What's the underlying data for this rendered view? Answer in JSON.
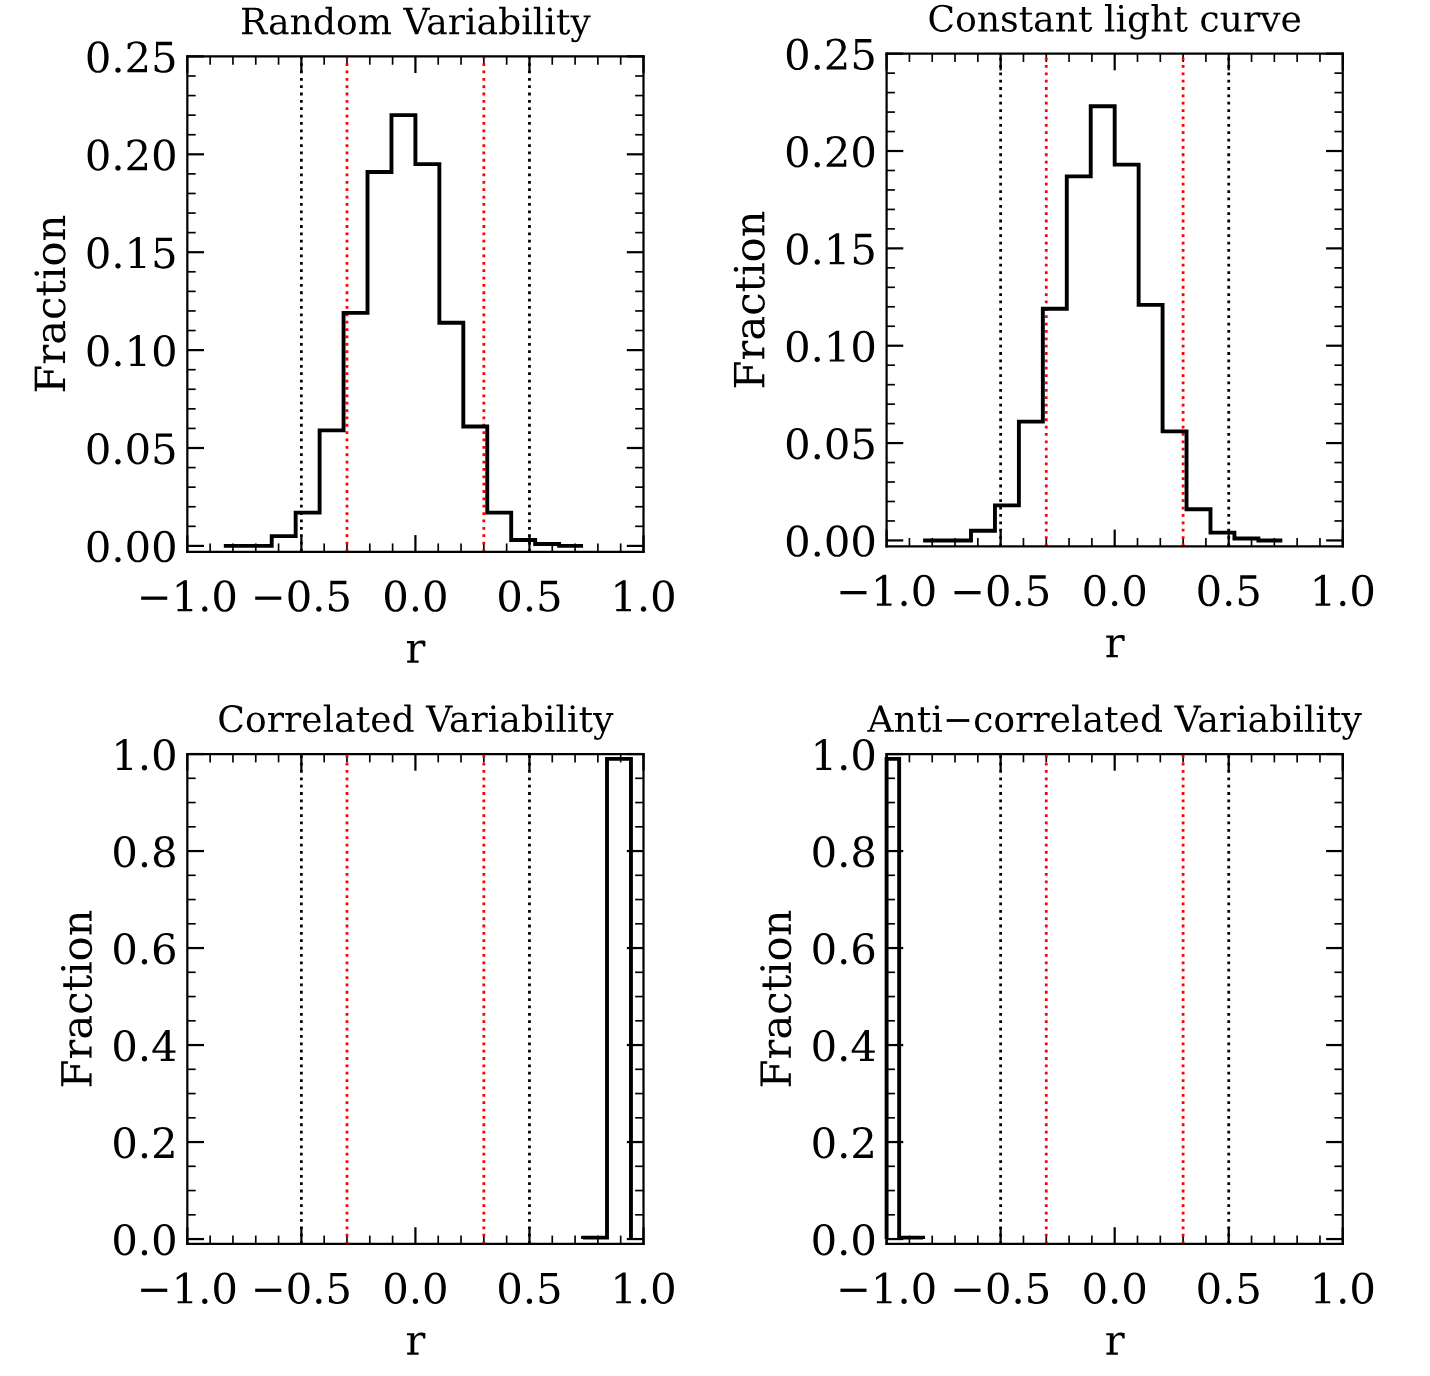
{
  "chart_data": [
    {
      "type": "histogram",
      "title": "Random Variability",
      "xlabel": "r",
      "ylabel": "Fraction",
      "bins": [
        -0.84,
        -0.735,
        -0.63,
        -0.525,
        -0.42,
        -0.315,
        -0.21,
        -0.105,
        0,
        0.105,
        0.21,
        0.315,
        0.42,
        0.525,
        0.63,
        0.735
      ],
      "values": [
        0,
        0,
        0.005,
        0.017,
        0.059,
        0.119,
        0.191,
        0.22,
        0.195,
        0.114,
        0.061,
        0.017,
        0.003,
        0.001,
        0
      ],
      "color": "#000000",
      "xlim": [
        -1.0,
        1.0
      ],
      "xticks": [
        {
          "value": -1.0,
          "label": "−1.0"
        },
        {
          "value": -0.5,
          "label": "−0.5"
        },
        {
          "value": 0.0,
          "label": "0.0"
        },
        {
          "value": 0.5,
          "label": "0.5"
        },
        {
          "value": 1.0,
          "label": "1.0"
        }
      ],
      "ylim": [
        -0.003,
        0.25
      ],
      "yticks": [
        {
          "value": 0,
          "label": "0.00"
        },
        {
          "value": 0.05,
          "label": "0.05"
        },
        {
          "value": 0.1,
          "label": "0.10"
        },
        {
          "value": 0.15,
          "label": "0.15"
        },
        {
          "value": 0.2,
          "label": "0.20"
        },
        {
          "value": 0.25,
          "label": "0.25"
        }
      ],
      "ref_lines": [
        {
          "axis": "x",
          "value": -0.5,
          "color": "#000000",
          "line_style": "dotted"
        },
        {
          "axis": "x",
          "value": 0.5,
          "color": "#000000",
          "line_style": "dotted"
        },
        {
          "axis": "x",
          "value": -0.3,
          "color": "#ff0000",
          "line_style": "dotted"
        },
        {
          "axis": "x",
          "value": 0.3,
          "color": "#ff0000",
          "line_style": "dotted"
        }
      ],
      "grid": false
    },
    {
      "type": "histogram",
      "title": "Constant light curve",
      "xlabel": "r",
      "ylabel": "Fraction",
      "bins": [
        -0.84,
        -0.735,
        -0.63,
        -0.525,
        -0.42,
        -0.315,
        -0.21,
        -0.105,
        0,
        0.105,
        0.21,
        0.315,
        0.42,
        0.525,
        0.63,
        0.735
      ],
      "values": [
        0,
        0,
        0.005,
        0.018,
        0.061,
        0.119,
        0.187,
        0.223,
        0.193,
        0.121,
        0.056,
        0.016,
        0.004,
        0.001,
        0
      ],
      "color": "#000000",
      "xlim": [
        -1.0,
        1.0
      ],
      "xticks": [
        {
          "value": -1.0,
          "label": "−1.0"
        },
        {
          "value": -0.5,
          "label": "−0.5"
        },
        {
          "value": 0.0,
          "label": "0.0"
        },
        {
          "value": 0.5,
          "label": "0.5"
        },
        {
          "value": 1.0,
          "label": "1.0"
        }
      ],
      "ylim": [
        -0.003,
        0.25
      ],
      "yticks": [
        {
          "value": 0,
          "label": "0.00"
        },
        {
          "value": 0.05,
          "label": "0.05"
        },
        {
          "value": 0.1,
          "label": "0.10"
        },
        {
          "value": 0.15,
          "label": "0.15"
        },
        {
          "value": 0.2,
          "label": "0.20"
        },
        {
          "value": 0.25,
          "label": "0.25"
        }
      ],
      "ref_lines": [
        {
          "axis": "x",
          "value": -0.5,
          "color": "#000000",
          "line_style": "dotted"
        },
        {
          "axis": "x",
          "value": 0.5,
          "color": "#000000",
          "line_style": "dotted"
        },
        {
          "axis": "x",
          "value": -0.3,
          "color": "#ff0000",
          "line_style": "dotted"
        },
        {
          "axis": "x",
          "value": 0.3,
          "color": "#ff0000",
          "line_style": "dotted"
        }
      ],
      "grid": false
    },
    {
      "type": "histogram",
      "title": "Correlated Variability",
      "xlabel": "r",
      "ylabel": "Fraction",
      "bins": [
        0.735,
        0.84,
        0.945
      ],
      "values": [
        0.003,
        0.99
      ],
      "color": "#000000",
      "xlim": [
        -1.0,
        1.0
      ],
      "xticks": [
        {
          "value": -1.0,
          "label": "−1.0"
        },
        {
          "value": -0.5,
          "label": "−0.5"
        },
        {
          "value": 0.0,
          "label": "0.0"
        },
        {
          "value": 0.5,
          "label": "0.5"
        },
        {
          "value": 1.0,
          "label": "1.0"
        }
      ],
      "ylim": [
        -0.01,
        1.0
      ],
      "yticks": [
        {
          "value": 0,
          "label": "0.0"
        },
        {
          "value": 0.2,
          "label": "0.2"
        },
        {
          "value": 0.4,
          "label": "0.4"
        },
        {
          "value": 0.6,
          "label": "0.6"
        },
        {
          "value": 0.8,
          "label": "0.8"
        },
        {
          "value": 1.0,
          "label": "1.0"
        }
      ],
      "ref_lines": [
        {
          "axis": "x",
          "value": -0.5,
          "color": "#000000",
          "line_style": "dotted"
        },
        {
          "axis": "x",
          "value": 0.5,
          "color": "#000000",
          "line_style": "dotted"
        },
        {
          "axis": "x",
          "value": -0.3,
          "color": "#ff0000",
          "line_style": "dotted"
        },
        {
          "axis": "x",
          "value": 0.3,
          "color": "#ff0000",
          "line_style": "dotted"
        }
      ],
      "grid": false
    },
    {
      "type": "histogram",
      "title": "Anti−correlated Variability",
      "xlabel": "r",
      "ylabel": "Fraction",
      "bins": [
        -1.0,
        -0.945,
        -0.84
      ],
      "values": [
        0.99,
        0.003
      ],
      "color": "#000000",
      "xlim": [
        -1.0,
        1.0
      ],
      "xticks": [
        {
          "value": -1.0,
          "label": "−1.0"
        },
        {
          "value": -0.5,
          "label": "−0.5"
        },
        {
          "value": 0.0,
          "label": "0.0"
        },
        {
          "value": 0.5,
          "label": "0.5"
        },
        {
          "value": 1.0,
          "label": "1.0"
        }
      ],
      "ylim": [
        -0.01,
        1.0
      ],
      "yticks": [
        {
          "value": 0,
          "label": "0.0"
        },
        {
          "value": 0.2,
          "label": "0.2"
        },
        {
          "value": 0.4,
          "label": "0.4"
        },
        {
          "value": 0.6,
          "label": "0.6"
        },
        {
          "value": 0.8,
          "label": "0.8"
        },
        {
          "value": 1.0,
          "label": "1.0"
        }
      ],
      "ref_lines": [
        {
          "axis": "x",
          "value": -0.5,
          "color": "#000000",
          "line_style": "dotted"
        },
        {
          "axis": "x",
          "value": 0.5,
          "color": "#000000",
          "line_style": "dotted"
        },
        {
          "axis": "x",
          "value": -0.3,
          "color": "#ff0000",
          "line_style": "dotted"
        },
        {
          "axis": "x",
          "value": 0.3,
          "color": "#ff0000",
          "line_style": "dotted"
        }
      ],
      "grid": false
    }
  ]
}
